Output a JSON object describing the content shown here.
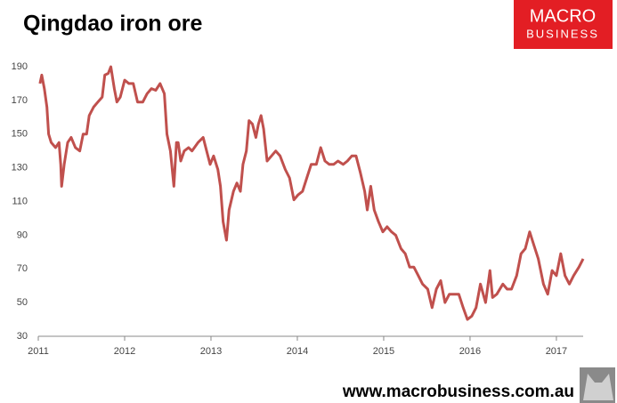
{
  "chart_data": {
    "type": "line",
    "title": "Qingdao iron ore",
    "brand": [
      "MACRO",
      "BUSINESS"
    ],
    "footer": "www.macrobusiness.com.au",
    "x": [
      2011.02,
      2011.04,
      2011.07,
      2011.1,
      2011.12,
      2011.15,
      2011.2,
      2011.24,
      2011.26,
      2011.27,
      2011.3,
      2011.34,
      2011.38,
      2011.43,
      2011.48,
      2011.52,
      2011.56,
      2011.59,
      2011.64,
      2011.69,
      2011.74,
      2011.77,
      2011.81,
      2011.84,
      2011.88,
      2011.91,
      2011.95,
      2012.0,
      2012.05,
      2012.1,
      2012.15,
      2012.21,
      2012.26,
      2012.31,
      2012.36,
      2012.41,
      2012.46,
      2012.49,
      2012.53,
      2012.57,
      2012.6,
      2012.62,
      2012.65,
      2012.69,
      2012.74,
      2012.78,
      2012.85,
      2012.91,
      2012.95,
      2012.99,
      2013.03,
      2013.08,
      2013.11,
      2013.14,
      2013.18,
      2013.21,
      2013.26,
      2013.3,
      2013.34,
      2013.37,
      2013.41,
      2013.44,
      2013.48,
      2013.52,
      2013.55,
      2013.58,
      2013.61,
      2013.65,
      2013.7,
      2013.75,
      2013.8,
      2013.86,
      2013.91,
      2013.96,
      2014.01,
      2014.06,
      2014.11,
      2014.16,
      2014.22,
      2014.27,
      2014.32,
      2014.37,
      2014.42,
      2014.47,
      2014.53,
      2014.58,
      2014.63,
      2014.68,
      2014.73,
      2014.78,
      2014.81,
      2014.85,
      2014.89,
      2014.94,
      2014.99,
      2015.04,
      2015.09,
      2015.14,
      2015.2,
      2015.25,
      2015.3,
      2015.35,
      2015.4,
      2015.45,
      2015.51,
      2015.56,
      2015.61,
      2015.66,
      2015.71,
      2015.76,
      2015.81,
      2015.87,
      2015.92,
      2015.97,
      2016.02,
      2016.07,
      2016.12,
      2016.18,
      2016.23,
      2016.26,
      2016.31,
      2016.38,
      2016.43,
      2016.48,
      2016.54,
      2016.59,
      2016.64,
      2016.69,
      2016.74,
      2016.79,
      2016.85,
      2016.9,
      2016.95,
      2017.0,
      2017.05,
      2017.1,
      2017.15,
      2017.2,
      2017.26,
      2017.31
    ],
    "series": [
      {
        "name": "Qingdao iron ore",
        "color": "#c0504d",
        "values": [
          180,
          185,
          177,
          166,
          150,
          145,
          142,
          145,
          132,
          119,
          132,
          145,
          148,
          142,
          140,
          150,
          150,
          161,
          166,
          169,
          172,
          185,
          186,
          190,
          177,
          169,
          172,
          182,
          180,
          180,
          169,
          169,
          174,
          177,
          176,
          180,
          174,
          150,
          140,
          119,
          145,
          145,
          134,
          140,
          142,
          140,
          145,
          148,
          140,
          132,
          137,
          129,
          119,
          98,
          87,
          105,
          116,
          121,
          116,
          132,
          140,
          158,
          156,
          148,
          156,
          161,
          153,
          134,
          137,
          140,
          137,
          129,
          124,
          111,
          114,
          116,
          124,
          132,
          132,
          142,
          134,
          132,
          132,
          134,
          132,
          134,
          137,
          137,
          127,
          116,
          105,
          119,
          105,
          98,
          92,
          95,
          92,
          90,
          82,
          79,
          71,
          71,
          66,
          61,
          58,
          47,
          58,
          63,
          50,
          55,
          55,
          55,
          47,
          40,
          42,
          47,
          61,
          50,
          69,
          53,
          55,
          61,
          58,
          58,
          66,
          79,
          82,
          92,
          84,
          76,
          61,
          55,
          69,
          66,
          79,
          66,
          61,
          66,
          71,
          76
        ]
      }
    ],
    "xlim": [
      2011,
      2017.31
    ],
    "ylim": [
      30,
      195
    ],
    "xticks": [
      2011,
      2012,
      2013,
      2014,
      2015,
      2016,
      2017
    ],
    "yticks": [
      30,
      50,
      70,
      90,
      110,
      130,
      150,
      170,
      190
    ],
    "grid": false
  }
}
